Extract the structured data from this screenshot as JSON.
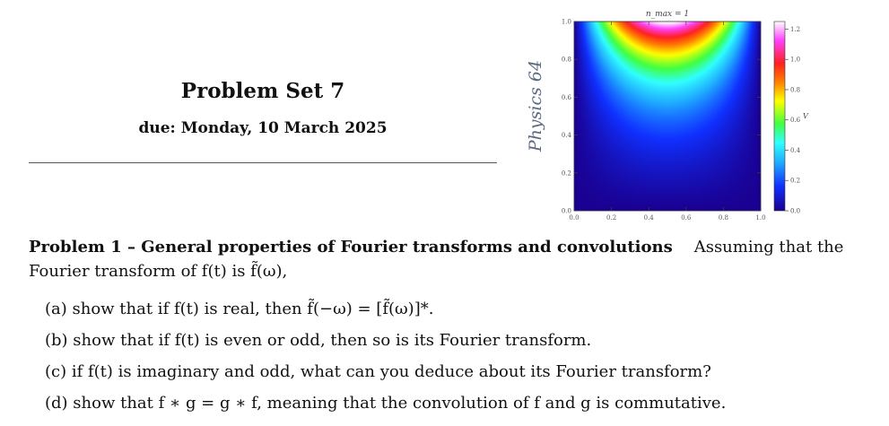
{
  "header": {
    "title": "Problem Set 7",
    "due": "due: Monday, 10 March 2025",
    "course": "Physics 64"
  },
  "figure": {
    "label_top": "n_max = 1",
    "colorbar_label": "V",
    "x_ticks": [
      "0.0",
      "0.2",
      "0.4",
      "0.6",
      "0.8",
      "1.0"
    ],
    "y_ticks": [
      "0.0",
      "0.2",
      "0.4",
      "0.6",
      "0.8",
      "1.0"
    ],
    "colorbar_ticks": [
      "0.0",
      "0.2",
      "0.4",
      "0.6",
      "0.8",
      "1.0",
      "1.2"
    ],
    "colormap": [
      "#1a0090",
      "#1030ff",
      "#20b0ff",
      "#30ffff",
      "#40ff40",
      "#ffff00",
      "#ff8000",
      "#ff2020",
      "#ff40ff",
      "#ffffff"
    ]
  },
  "problem": {
    "heading": "Problem 1 – General properties of Fourier transforms and convolutions",
    "intro": "Assuming that the Fourier transform of f(t) is f̃(ω),",
    "parts": [
      "(a) show that if f(t) is real, then f̃(−ω) = [f̃(ω)]*.",
      "(b) show that if f(t) is even or odd, then so is its Fourier transform.",
      "(c) if f(t) is imaginary and odd, what can you deduce about its Fourier transform?",
      "(d) show that f ∗ g = g ∗ f, meaning that the convolution of f and g is commutative."
    ]
  }
}
